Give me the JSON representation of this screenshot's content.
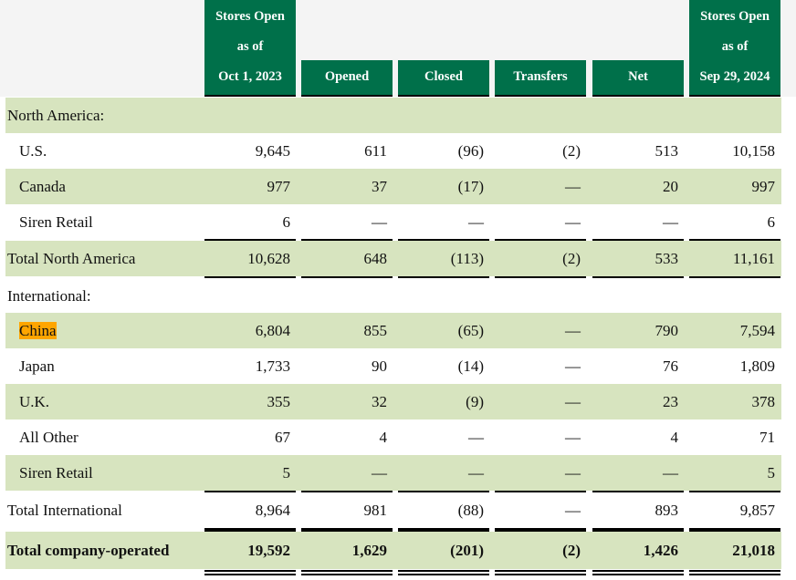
{
  "header": {
    "columns": [
      {
        "lines": [
          "Stores Open",
          "as of",
          "Oct 1, 2023"
        ]
      },
      {
        "lines": [
          "Opened"
        ]
      },
      {
        "lines": [
          "Closed"
        ]
      },
      {
        "lines": [
          "Transfers"
        ]
      },
      {
        "lines": [
          "Net"
        ]
      },
      {
        "lines": [
          "Stores Open",
          "as of",
          "Sep 29, 2024"
        ]
      }
    ]
  },
  "colors": {
    "header_green": "#00704a",
    "band_green": "#d7e4bf",
    "highlight": "#ffa500"
  },
  "rows": [
    {
      "label": "North America:",
      "values": [],
      "indent": false,
      "shaded": true
    },
    {
      "label": "U.S.",
      "values": [
        "9,645",
        "611",
        "(96)",
        "(2)",
        "513",
        "10,158"
      ],
      "indent": true,
      "shaded": false
    },
    {
      "label": "Canada",
      "values": [
        "977",
        "37",
        "(17)",
        "—",
        "20",
        "997"
      ],
      "indent": true,
      "shaded": true
    },
    {
      "label": "Siren Retail",
      "values": [
        "6",
        "—",
        "—",
        "—",
        "—",
        "6"
      ],
      "indent": true,
      "shaded": false
    },
    {
      "label": "Total North America",
      "values": [
        "10,628",
        "648",
        "(113)",
        "(2)",
        "533",
        "11,161"
      ],
      "indent": false,
      "shaded": true,
      "total": true
    },
    {
      "label": "International:",
      "values": [],
      "indent": false,
      "shaded": false
    },
    {
      "label": "China",
      "values": [
        "6,804",
        "855",
        "(65)",
        "—",
        "790",
        "7,594"
      ],
      "indent": true,
      "shaded": true,
      "highlighted": true
    },
    {
      "label": "Japan",
      "values": [
        "1,733",
        "90",
        "(14)",
        "—",
        "76",
        "1,809"
      ],
      "indent": true,
      "shaded": false
    },
    {
      "label": "U.K.",
      "values": [
        "355",
        "32",
        "(9)",
        "—",
        "23",
        "378"
      ],
      "indent": true,
      "shaded": true
    },
    {
      "label": "All Other",
      "values": [
        "67",
        "4",
        "—",
        "—",
        "4",
        "71"
      ],
      "indent": true,
      "shaded": false
    },
    {
      "label": "Siren Retail",
      "values": [
        "5",
        "—",
        "—",
        "—",
        "—",
        "5"
      ],
      "indent": true,
      "shaded": true
    },
    {
      "label": "Total International",
      "values": [
        "8,964",
        "981",
        "(88)",
        "—",
        "893",
        "9,857"
      ],
      "indent": false,
      "shaded": false,
      "total": true
    },
    {
      "label": "Total company-operated",
      "values": [
        "19,592",
        "1,629",
        "(201)",
        "(2)",
        "1,426",
        "21,018"
      ],
      "indent": false,
      "shaded": true,
      "bold": true,
      "grand_total": true
    }
  ]
}
